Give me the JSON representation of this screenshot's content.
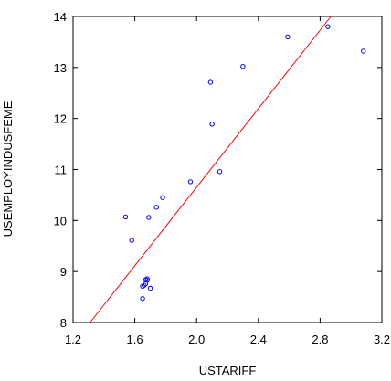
{
  "chart_data": {
    "type": "scatter",
    "title": "",
    "xlabel": "USTARIFF",
    "ylabel": "USEMPLOYINDUSFEME",
    "xlim": [
      1.2,
      3.2
    ],
    "ylim": [
      8,
      14
    ],
    "x_ticks": [
      "1.2",
      "1.6",
      "2.0",
      "2.4",
      "2.8",
      "3.2"
    ],
    "y_ticks": [
      "8",
      "9",
      "10",
      "11",
      "12",
      "13",
      "14"
    ],
    "grid": false,
    "legend": "none",
    "marker_color": "#0000ff",
    "line_color": "#ff0000",
    "series": [
      {
        "points": [
          [
            1.54,
            10.07
          ],
          [
            1.58,
            9.61
          ],
          [
            1.65,
            8.71
          ],
          [
            1.66,
            8.73
          ],
          [
            1.65,
            8.47
          ],
          [
            1.67,
            8.84
          ],
          [
            1.67,
            8.76
          ],
          [
            1.68,
            8.86
          ],
          [
            1.68,
            8.83
          ],
          [
            1.7,
            8.67
          ],
          [
            1.69,
            10.06
          ],
          [
            1.74,
            10.26
          ],
          [
            1.78,
            10.45
          ],
          [
            1.96,
            10.76
          ],
          [
            2.09,
            12.71
          ],
          [
            2.1,
            11.89
          ],
          [
            2.15,
            10.96
          ],
          [
            2.3,
            13.02
          ],
          [
            2.59,
            13.6
          ],
          [
            2.85,
            13.8
          ],
          [
            3.08,
            13.32
          ]
        ]
      }
    ],
    "fit_line": {
      "x": [
        1.31,
        2.87
      ],
      "y": [
        8.0,
        14.0
      ]
    }
  }
}
